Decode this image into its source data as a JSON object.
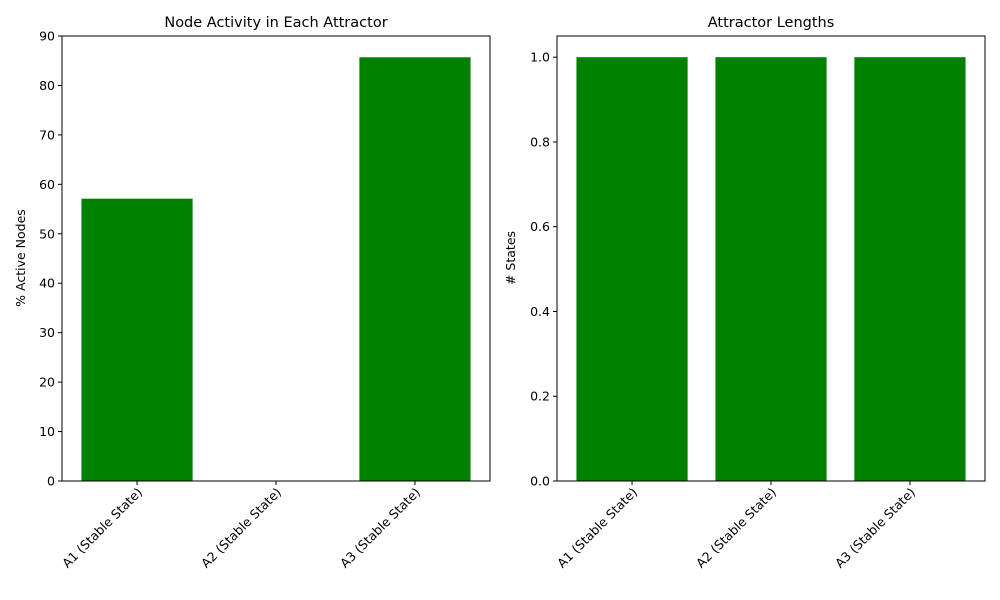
{
  "chart_data": [
    {
      "type": "bar",
      "title": "Node Activity in Each Attractor",
      "xlabel": "",
      "ylabel": "% Active Nodes",
      "categories": [
        "A1 (Stable State)",
        "A2 (Stable State)",
        "A3 (Stable State)"
      ],
      "values": [
        57.1,
        0,
        85.7
      ],
      "ylim": [
        0,
        90
      ],
      "yticks": [
        "0",
        "10",
        "20",
        "30",
        "40",
        "50",
        "60",
        "70",
        "80",
        "90"
      ],
      "bar_color": "#008000",
      "grid": false
    },
    {
      "type": "bar",
      "title": "Attractor Lengths",
      "xlabel": "",
      "ylabel": "# States",
      "categories": [
        "A1 (Stable State)",
        "A2 (Stable State)",
        "A3 (Stable State)"
      ],
      "values": [
        1,
        1,
        1
      ],
      "ylim": [
        0,
        1.05
      ],
      "yticks": [
        "0.0",
        "0.2",
        "0.4",
        "0.6",
        "0.8",
        "1.0"
      ],
      "bar_color": "#008000",
      "grid": false
    }
  ]
}
